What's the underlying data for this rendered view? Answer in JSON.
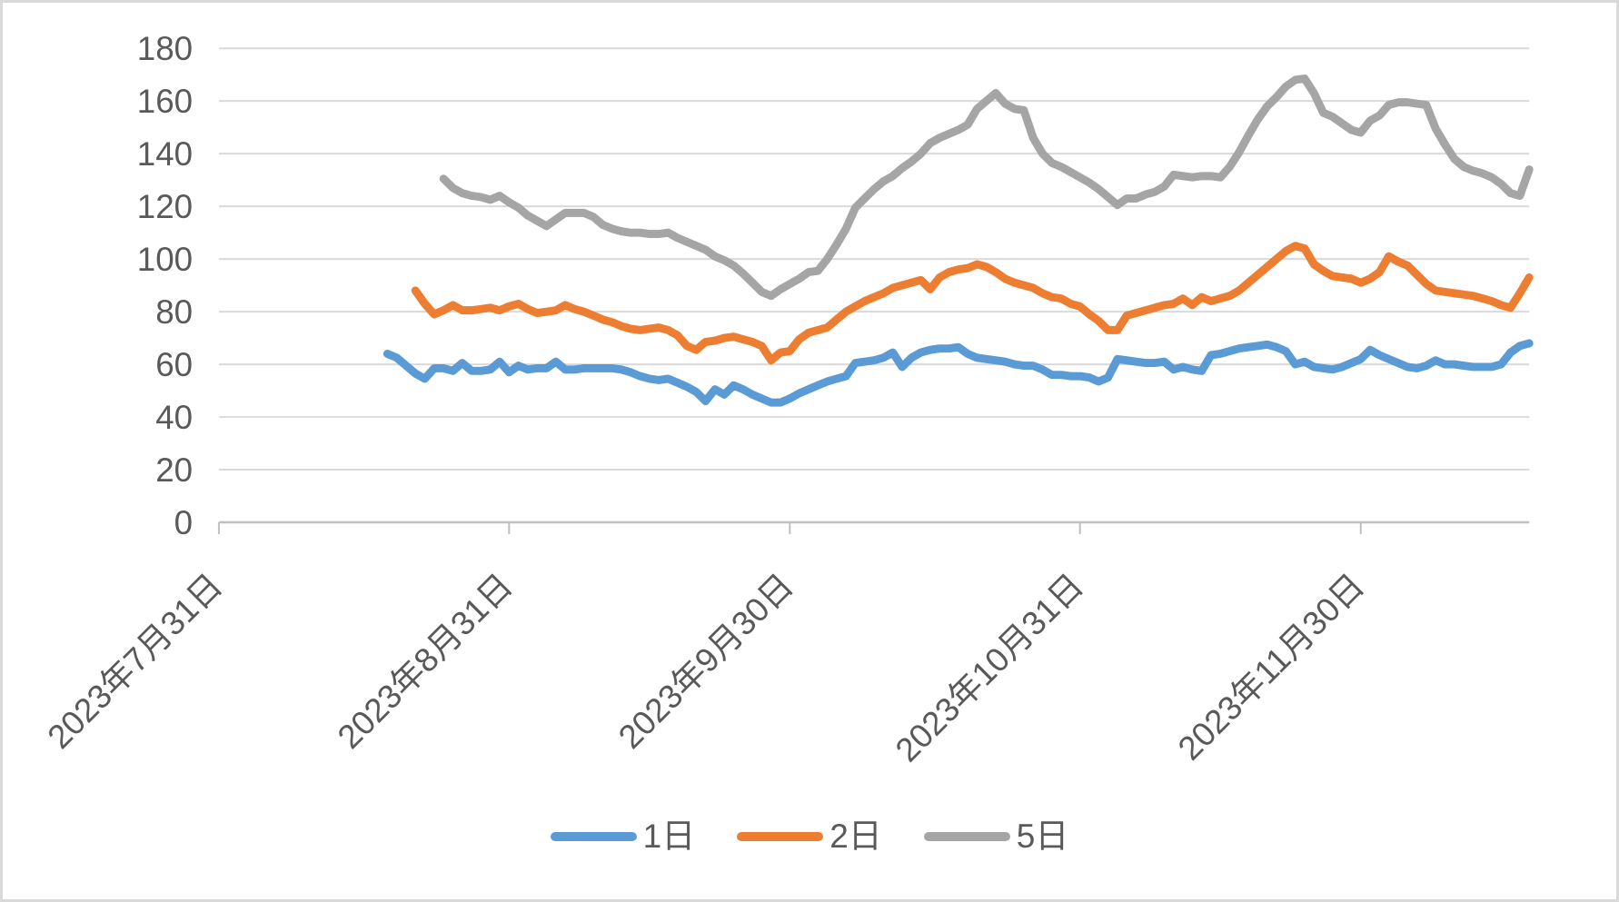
{
  "chart_data": {
    "type": "line",
    "title": "",
    "legend_position": "bottom",
    "grid": true,
    "x_axis": {
      "tick_labels": [
        "2023年7月31日",
        "2023年8月31日",
        "2023年9月30日",
        "2023年10月31日",
        "2023年11月30日"
      ],
      "tick_days": [
        0,
        31,
        61,
        92,
        122
      ],
      "total_days": 140
    },
    "y_axis": {
      "min": 0,
      "max": 180,
      "step": 20,
      "tick_labels": [
        "0",
        "20",
        "40",
        "60",
        "80",
        "100",
        "120",
        "140",
        "160",
        "180"
      ]
    },
    "series": [
      {
        "name": "1日",
        "color": "#5B9BD5",
        "start_day": 18,
        "values": [
          64,
          62.5,
          59.5,
          56.5,
          54.5,
          58.5,
          58.5,
          57.5,
          60.5,
          57.5,
          57.5,
          58,
          61,
          57,
          59.5,
          58,
          58.5,
          58.5,
          61,
          58,
          58,
          58.5,
          58.5,
          58.5,
          58.5,
          58,
          57,
          55.5,
          54.5,
          54,
          54.5,
          53,
          51.5,
          49.5,
          46,
          50.5,
          48.5,
          52,
          50.5,
          48.5,
          47,
          45.5,
          45.5,
          47,
          49,
          50.5,
          52,
          53.5,
          54.5,
          55.5,
          60.5,
          61,
          61.5,
          62.5,
          64.5,
          59,
          62.5,
          64.5,
          65.5,
          66,
          66,
          66.5,
          64,
          62.5,
          62,
          61.5,
          61,
          60,
          59.5,
          59.5,
          58,
          56,
          56,
          55.5,
          55.5,
          55,
          53.5,
          55,
          62,
          61.5,
          61,
          60.5,
          60.5,
          61,
          58,
          59,
          58,
          57.5,
          63.5,
          64,
          65,
          66,
          66.5,
          67,
          67.5,
          66.5,
          65,
          60,
          61,
          59,
          58.5,
          58,
          59,
          60.5,
          62,
          65.5,
          63.5,
          62,
          60.5,
          59,
          58.5,
          59.5,
          61.5,
          60,
          60,
          59.5,
          59,
          59,
          59,
          60,
          64.5,
          67,
          68
        ]
      },
      {
        "name": "2日",
        "color": "#ED7D31",
        "start_day": 21,
        "values": [
          88,
          83,
          79,
          80.5,
          82.5,
          80.5,
          80.5,
          81,
          81.5,
          80.5,
          82,
          83,
          81,
          79.5,
          80,
          80.5,
          82.5,
          81,
          80,
          78.5,
          77,
          76,
          74.5,
          73.5,
          73,
          73.5,
          74,
          73,
          71,
          67,
          65.5,
          68.5,
          69,
          70,
          70.5,
          69.5,
          68.5,
          67,
          61.5,
          64.5,
          65,
          69.5,
          72,
          73,
          74,
          77,
          80,
          82,
          84,
          85.5,
          87,
          89,
          90,
          91,
          92,
          88.5,
          93,
          95,
          96,
          96.5,
          98,
          97,
          95,
          92.5,
          91,
          90,
          89,
          87,
          85.5,
          85,
          83,
          82,
          79,
          76.5,
          73,
          73,
          78.5,
          79.5,
          80.5,
          81.5,
          82.5,
          83,
          85,
          82.5,
          85.5,
          84,
          85,
          86,
          88,
          91,
          94,
          97,
          100,
          103,
          105,
          104,
          98,
          95.5,
          93.5,
          93,
          92.5,
          91,
          92.5,
          95,
          101,
          99,
          97.5,
          94,
          90.5,
          88,
          87.5,
          87,
          86.5,
          86,
          85,
          84,
          82.5,
          81.5,
          87,
          93
        ]
      },
      {
        "name": "5日",
        "color": "#A5A5A5",
        "start_day": 24,
        "values": [
          130.5,
          127,
          125,
          124,
          123.5,
          122.5,
          124,
          121.5,
          119.5,
          116.5,
          114.5,
          112.5,
          115,
          117.5,
          117.5,
          117.5,
          116,
          113,
          111.5,
          110.5,
          110,
          110,
          109.5,
          109.5,
          110,
          108,
          106.5,
          105,
          103.5,
          101,
          99.5,
          97.5,
          94.5,
          91,
          87.5,
          86,
          88.5,
          90.5,
          92.5,
          95,
          95.5,
          100,
          105.5,
          111.5,
          119.5,
          123,
          126.5,
          129.5,
          131.5,
          134.5,
          137,
          140,
          144,
          146,
          147.5,
          149,
          151,
          157,
          160,
          163,
          159,
          157,
          156.5,
          146,
          140,
          136.5,
          135,
          133,
          131,
          129,
          126.5,
          123.5,
          120.5,
          123,
          123,
          124.5,
          125.5,
          127.5,
          132,
          131.5,
          131,
          131.5,
          131.5,
          131,
          135,
          140.5,
          147,
          153,
          158,
          161.5,
          165.5,
          168,
          168.5,
          163,
          155.5,
          154,
          151.5,
          149,
          148,
          152.5,
          154.5,
          158.5,
          159.5,
          159.5,
          159,
          158.5,
          149.5,
          143.5,
          138,
          135,
          133.5,
          132.5,
          131,
          128.5,
          125,
          124,
          134
        ]
      }
    ],
    "style": {
      "gridline_color": "#D9D9D9",
      "axis_color": "#BFBFBF",
      "label_color": "#595959",
      "background_color": "#FFFFFF",
      "border_color": "#D9D9D9"
    }
  }
}
